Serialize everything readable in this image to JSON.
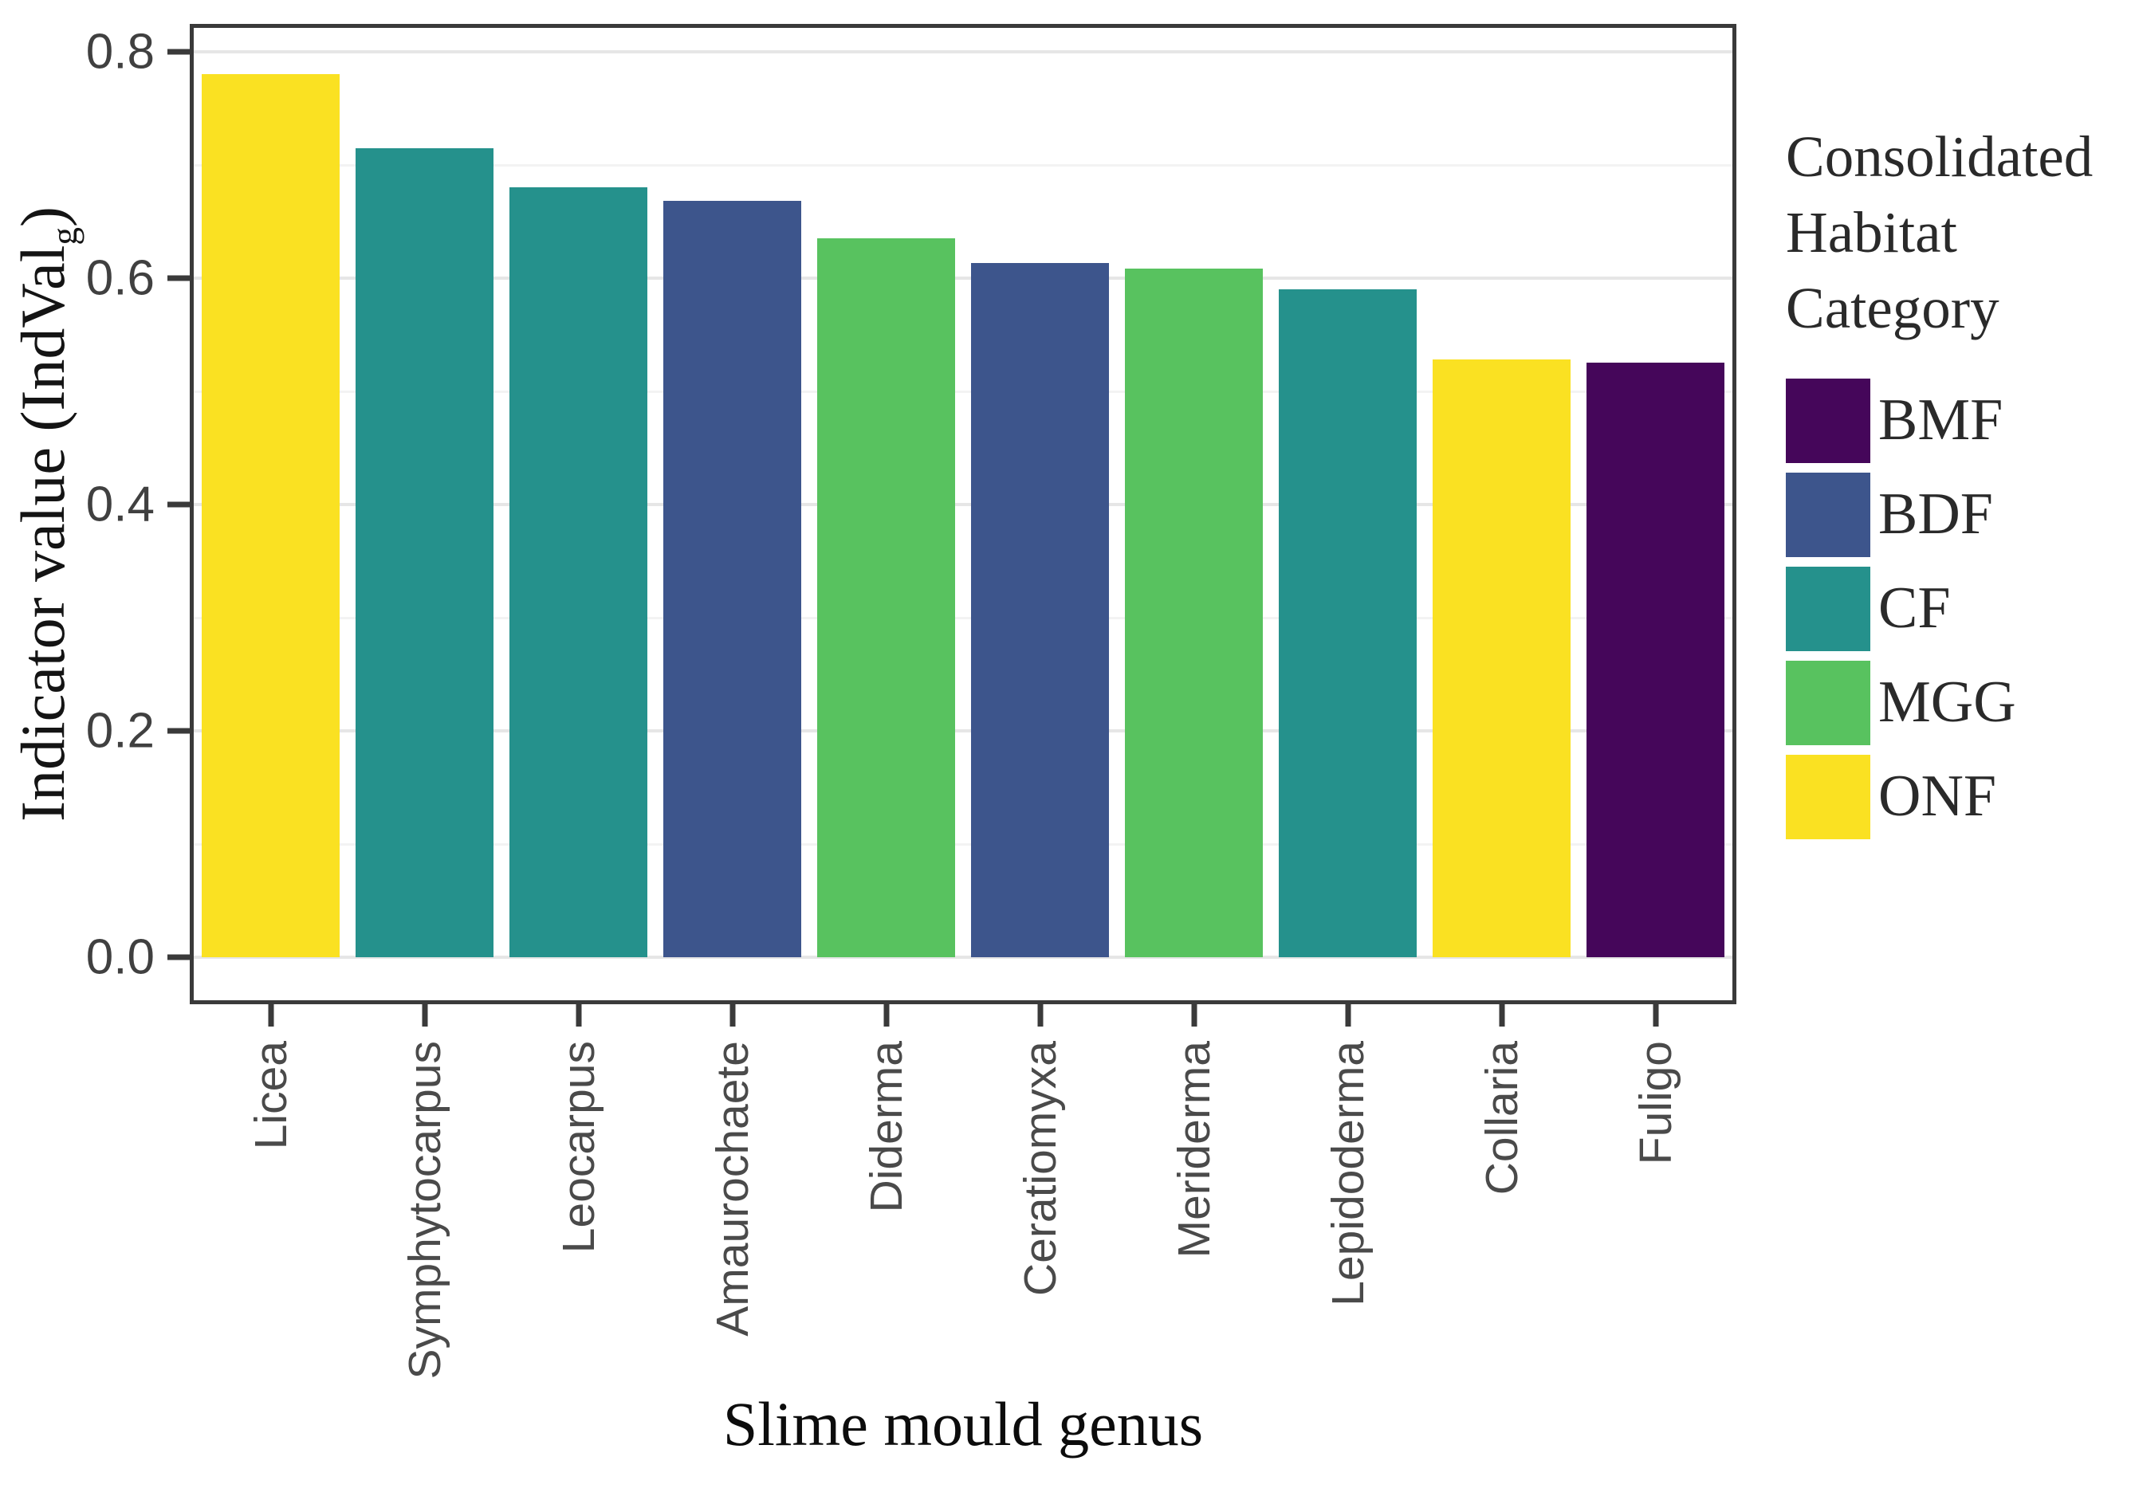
{
  "chart_data": {
    "type": "bar",
    "title": "",
    "xlabel": "Slime mould genus",
    "ylabel": "Indicator value (IndValg)",
    "ylabel_parts": {
      "main": "Indicator value (IndVal",
      "sub": "g",
      "close": ")"
    },
    "categories": [
      "Licea",
      "Symphytocarpus",
      "Leocarpus",
      "Amaurochaete",
      "Diderma",
      "Ceratiomyxa",
      "Meriderma",
      "Lepidoderma",
      "Collaria",
      "Fuligo"
    ],
    "values": [
      0.78,
      0.715,
      0.68,
      0.668,
      0.635,
      0.613,
      0.608,
      0.59,
      0.528,
      0.525
    ],
    "bar_habitats": [
      "ONF",
      "CF",
      "CF",
      "BDF",
      "MGG",
      "BDF",
      "MGG",
      "CF",
      "ONF",
      "BMF"
    ],
    "y_ticks": [
      "0.0",
      "0.2",
      "0.4",
      "0.6",
      "0.8"
    ],
    "y_tick_values": [
      0,
      0.2,
      0.4,
      0.6,
      0.8
    ],
    "y_minor_values": [
      0.1,
      0.3,
      0.5,
      0.7
    ],
    "ylim": [
      -0.038,
      0.821
    ],
    "grid": "major-and-minor-horizontal",
    "legend_position": "right",
    "legend": {
      "title": "Consolidated Habitat Category",
      "title_lines": [
        "Consolidated",
        "Habitat",
        "Category"
      ],
      "entries": [
        {
          "label": "BMF",
          "color": "#45065a"
        },
        {
          "label": "BDF",
          "color": "#3d558c"
        },
        {
          "label": "CF",
          "color": "#25918c"
        },
        {
          "label": "MGG",
          "color": "#58c25f"
        },
        {
          "label": "ONF",
          "color": "#fae122"
        }
      ]
    }
  }
}
